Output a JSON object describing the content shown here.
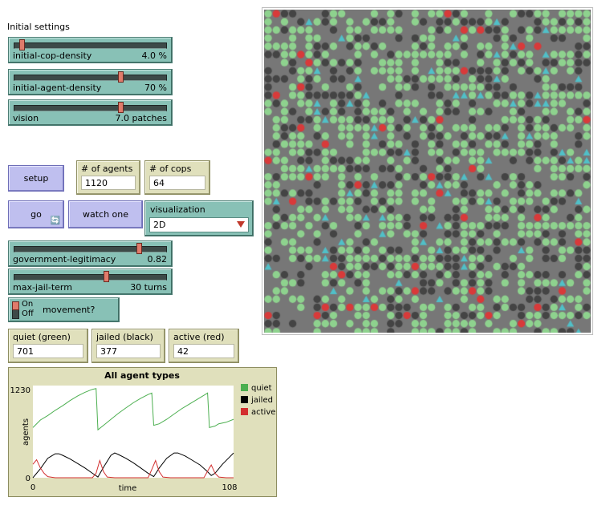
{
  "section_title": "Initial settings",
  "sliders": [
    {
      "name": "initial-cop-density",
      "value": "4.0 %",
      "level": 0.04
    },
    {
      "name": "initial-agent-density",
      "value": "70 %",
      "level": 0.7
    },
    {
      "name": "vision",
      "value": "7.0 patches",
      "level": 0.7
    },
    {
      "name": "government-legitimacy",
      "value": "0.82",
      "level": 0.82
    },
    {
      "name": "max-jail-term",
      "value": "30 turns",
      "level": 0.6
    }
  ],
  "buttons": {
    "setup": "setup",
    "go": "go",
    "go_forever_icon": "forever-arrows-icon",
    "watch_one": "watch one"
  },
  "monitors": {
    "agents": {
      "label": "# of agents",
      "value": "1120"
    },
    "cops": {
      "label": "# of cops",
      "value": "64"
    },
    "quiet": {
      "label": "quiet (green)",
      "value": "701"
    },
    "jailed": {
      "label": "jailed (black)",
      "value": "377"
    },
    "active": {
      "label": "active (red)",
      "value": "42"
    }
  },
  "chooser": {
    "label": "visualization",
    "value": "2D"
  },
  "switch": {
    "on_label": "On",
    "off_label": "Off",
    "name": "movement?",
    "state": "on"
  },
  "colors": {
    "world_bg": "#777777",
    "quiet": "#8ed28e",
    "jailed": "#444444",
    "active": "#d83a3a",
    "cop": "#50c0c8",
    "button": "#bfbfef",
    "slider": "#88c1b6",
    "monitor": "#e0e0bc"
  },
  "chart_data": {
    "type": "line",
    "title": "All agent types",
    "xlabel": "time",
    "ylabel": "agents",
    "xlim": [
      0,
      108
    ],
    "ylim": [
      0,
      1230
    ],
    "x_tick_labels": [
      "0",
      "108"
    ],
    "y_tick_labels": [
      "0",
      "1230"
    ],
    "legend_position": "right",
    "series": [
      {
        "name": "quiet",
        "color": "#4caf50",
        "points": [
          [
            0,
            670
          ],
          [
            4,
            770
          ],
          [
            8,
            830
          ],
          [
            12,
            900
          ],
          [
            16,
            960
          ],
          [
            20,
            1030
          ],
          [
            24,
            1090
          ],
          [
            28,
            1140
          ],
          [
            32,
            1180
          ],
          [
            34,
            1190
          ],
          [
            35,
            640
          ],
          [
            38,
            700
          ],
          [
            42,
            780
          ],
          [
            46,
            860
          ],
          [
            50,
            930
          ],
          [
            54,
            1000
          ],
          [
            58,
            1060
          ],
          [
            62,
            1110
          ],
          [
            64,
            1130
          ],
          [
            65,
            700
          ],
          [
            68,
            720
          ],
          [
            72,
            780
          ],
          [
            76,
            850
          ],
          [
            80,
            920
          ],
          [
            84,
            980
          ],
          [
            88,
            1040
          ],
          [
            92,
            1100
          ],
          [
            94,
            1130
          ],
          [
            95,
            670
          ],
          [
            98,
            690
          ],
          [
            100,
            720
          ],
          [
            104,
            740
          ],
          [
            108,
            780
          ]
        ]
      },
      {
        "name": "jailed",
        "color": "#000000",
        "points": [
          [
            0,
            0
          ],
          [
            4,
            120
          ],
          [
            8,
            260
          ],
          [
            10,
            290
          ],
          [
            12,
            320
          ],
          [
            14,
            320
          ],
          [
            16,
            300
          ],
          [
            20,
            250
          ],
          [
            24,
            190
          ],
          [
            28,
            130
          ],
          [
            32,
            60
          ],
          [
            35,
            10
          ],
          [
            38,
            140
          ],
          [
            42,
            300
          ],
          [
            44,
            330
          ],
          [
            46,
            310
          ],
          [
            50,
            260
          ],
          [
            54,
            200
          ],
          [
            58,
            130
          ],
          [
            62,
            60
          ],
          [
            65,
            15
          ],
          [
            68,
            130
          ],
          [
            72,
            260
          ],
          [
            76,
            330
          ],
          [
            78,
            330
          ],
          [
            82,
            290
          ],
          [
            86,
            230
          ],
          [
            90,
            170
          ],
          [
            94,
            80
          ],
          [
            96,
            30
          ],
          [
            98,
            60
          ],
          [
            102,
            180
          ],
          [
            106,
            280
          ],
          [
            108,
            330
          ]
        ]
      },
      {
        "name": "active",
        "color": "#d32f2f",
        "points": [
          [
            0,
            180
          ],
          [
            2,
            240
          ],
          [
            4,
            130
          ],
          [
            6,
            60
          ],
          [
            8,
            15
          ],
          [
            12,
            0
          ],
          [
            32,
            0
          ],
          [
            34,
            60
          ],
          [
            36,
            230
          ],
          [
            38,
            80
          ],
          [
            40,
            10
          ],
          [
            44,
            0
          ],
          [
            62,
            0
          ],
          [
            64,
            110
          ],
          [
            66,
            230
          ],
          [
            68,
            80
          ],
          [
            70,
            10
          ],
          [
            74,
            0
          ],
          [
            92,
            0
          ],
          [
            95,
            130
          ],
          [
            96,
            170
          ],
          [
            98,
            60
          ],
          [
            100,
            10
          ],
          [
            104,
            0
          ],
          [
            108,
            0
          ]
        ]
      }
    ]
  }
}
